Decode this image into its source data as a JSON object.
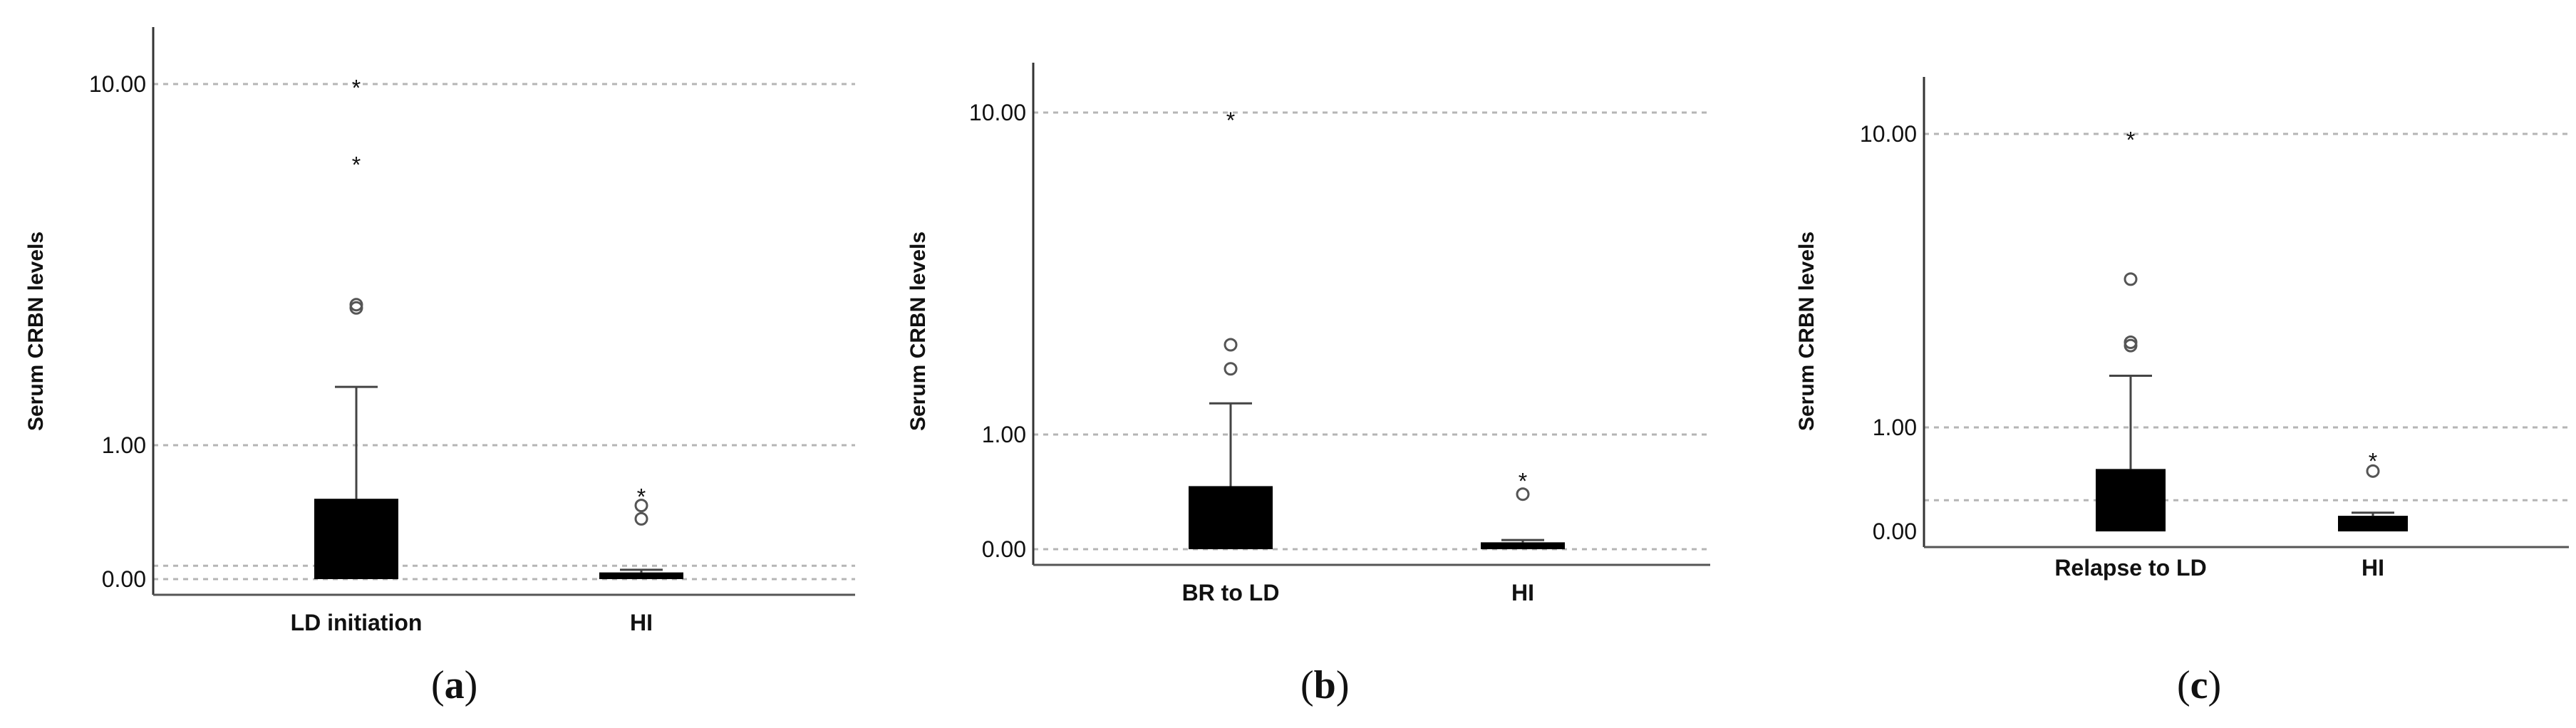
{
  "chart_data": [
    {
      "type": "box",
      "panel_label": "a",
      "ylabel": "Serum CRBN levels",
      "yscale": "log-like",
      "yticks": [
        {
          "value": 0.0,
          "label": "0.00"
        },
        {
          "value": 1.0,
          "label": "1.00"
        },
        {
          "value": 10.0,
          "label": "10.00"
        }
      ],
      "reference_lines": [
        0.0,
        1.0,
        10.0,
        0.1
      ],
      "grid": false,
      "categories": [
        "LD initiation",
        "HI"
      ],
      "series": [
        {
          "category": "LD initiation",
          "min": 0.0,
          "q1": 0.0,
          "q3": 0.6,
          "max": 1.45,
          "outliers_circle": [
            2.4,
            2.45
          ],
          "outliers_star": [
            6.0,
            9.8
          ]
        },
        {
          "category": "HI",
          "min": 0.0,
          "q1": 0.0,
          "q3": 0.05,
          "max": 0.07,
          "outliers_circle": [
            0.45,
            0.55
          ],
          "outliers_star": [
            0.62
          ]
        }
      ]
    },
    {
      "type": "box",
      "panel_label": "b",
      "ylabel": "Serum CRBN levels",
      "yscale": "log-like",
      "yticks": [
        {
          "value": 0.0,
          "label": "0.00"
        },
        {
          "value": 1.0,
          "label": "1.00"
        },
        {
          "value": 10.0,
          "label": "10.00"
        }
      ],
      "reference_lines": [
        0.0,
        1.0,
        10.0
      ],
      "grid": false,
      "categories": [
        "BR to LD",
        "HI"
      ],
      "series": [
        {
          "category": "BR to LD",
          "min": 0.0,
          "q1": 0.0,
          "q3": 0.55,
          "max": 1.25,
          "outliers_circle": [
            1.6,
            1.9
          ],
          "outliers_star": [
            9.5
          ]
        },
        {
          "category": "HI",
          "min": 0.0,
          "q1": 0.0,
          "q3": 0.06,
          "max": 0.08,
          "outliers_circle": [
            0.48
          ],
          "outliers_star": [
            0.6
          ]
        }
      ]
    },
    {
      "type": "box",
      "panel_label": "c",
      "ylabel": "Serum CRBN levels",
      "yscale": "log-like",
      "yticks": [
        {
          "value": 0.0,
          "label": "0.00"
        },
        {
          "value": 1.0,
          "label": "1.00"
        },
        {
          "value": 10.0,
          "label": "10.00"
        }
      ],
      "reference_lines": [
        1.0,
        10.0,
        0.3
      ],
      "grid": false,
      "categories": [
        "Relapse to LD",
        "HI"
      ],
      "series": [
        {
          "category": "Relapse to LD",
          "min": 0.0,
          "q1": 0.0,
          "q3": 0.6,
          "max": 1.5,
          "outliers_circle": [
            1.9,
            1.95,
            3.2
          ],
          "outliers_star": [
            9.6
          ]
        },
        {
          "category": "HI",
          "min": 0.0,
          "q1": 0.0,
          "q3": 0.15,
          "max": 0.18,
          "outliers_circle": [
            0.58
          ],
          "outliers_star": [
            0.68
          ]
        }
      ]
    }
  ]
}
